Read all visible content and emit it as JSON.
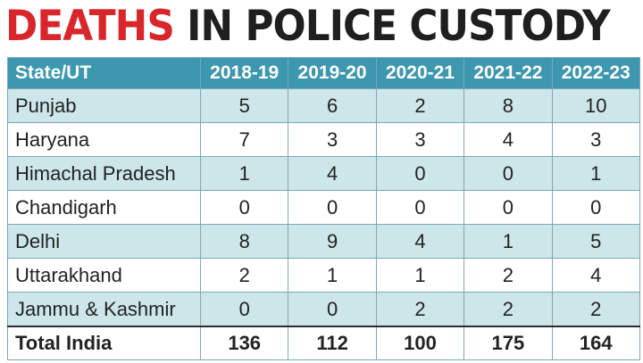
{
  "headline": {
    "highlight": "DEATHS",
    "rest": "IN POLICE CUSTODY",
    "highlight_color": "#d9262b",
    "text_color": "#1f1f1f"
  },
  "table": {
    "header_color": "#3d97af",
    "alt_row_color": "#cde6ea",
    "columns": [
      "State/UT",
      "2018-19",
      "2019-20",
      "2020-21",
      "2021-22",
      "2022-23"
    ],
    "rows": [
      {
        "state": "Punjab",
        "values": [
          "5",
          "6",
          "2",
          "8",
          "10"
        ]
      },
      {
        "state": "Haryana",
        "values": [
          "7",
          "3",
          "3",
          "4",
          "3"
        ]
      },
      {
        "state": "Himachal Pradesh",
        "values": [
          "1",
          "4",
          "0",
          "0",
          "1"
        ]
      },
      {
        "state": "Chandigarh",
        "values": [
          "0",
          "0",
          "0",
          "0",
          "0"
        ]
      },
      {
        "state": "Delhi",
        "values": [
          "8",
          "9",
          "4",
          "1",
          "5"
        ]
      },
      {
        "state": "Uttarakhand",
        "values": [
          "2",
          "1",
          "1",
          "2",
          "4"
        ]
      },
      {
        "state": "Jammu & Kashmir",
        "values": [
          "0",
          "0",
          "2",
          "2",
          "2"
        ]
      }
    ],
    "total": {
      "label": "Total India",
      "values": [
        "136",
        "112",
        "100",
        "175",
        "164"
      ]
    }
  }
}
